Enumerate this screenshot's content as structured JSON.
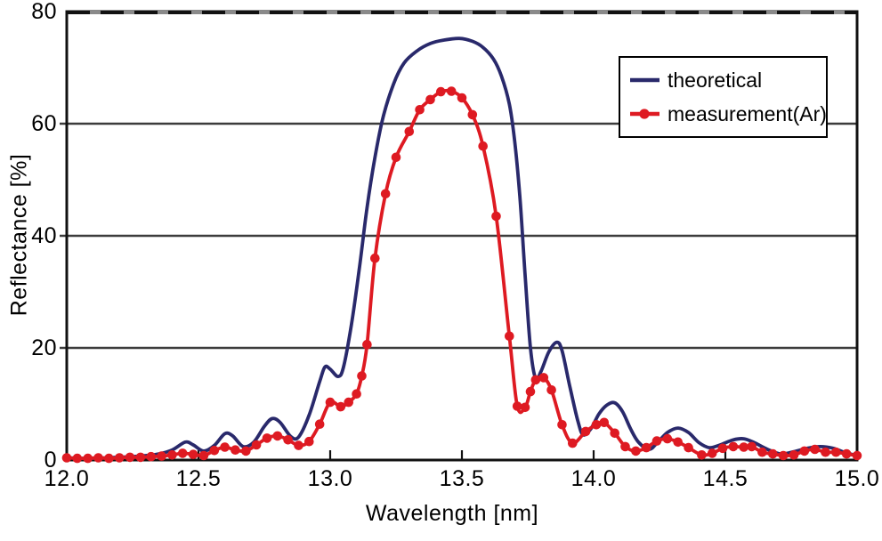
{
  "chart_data": {
    "type": "line",
    "xlabel": "Wavelength [nm]",
    "ylabel": "Reflectance [%]",
    "xlim": [
      12.0,
      15.0
    ],
    "ylim": [
      0,
      80
    ],
    "x_ticks": [
      "12.0",
      "12.5",
      "13.0",
      "13.5",
      "14.0",
      "14.5",
      "15.0"
    ],
    "y_ticks": [
      "80",
      "60",
      "40",
      "20",
      "0"
    ],
    "grid_y_values": [
      20,
      40,
      60
    ],
    "grid": "horizontal",
    "legend_position": "top-right",
    "colors": {
      "theoretical": "#29296b",
      "measurement": "#de1a22",
      "grid": "#3c3c3c",
      "axis": "#111111",
      "text": "#000000",
      "background": "#ffffff"
    },
    "series": [
      {
        "name": "theoretical",
        "color": "#29296b",
        "marker": "none",
        "points": [
          [
            12.0,
            0.4
          ],
          [
            12.05,
            0.3
          ],
          [
            12.1,
            0.3
          ],
          [
            12.15,
            0.4
          ],
          [
            12.2,
            0.5
          ],
          [
            12.25,
            0.6
          ],
          [
            12.3,
            0.8
          ],
          [
            12.35,
            1.1
          ],
          [
            12.4,
            1.8
          ],
          [
            12.45,
            3.2
          ],
          [
            12.48,
            2.7
          ],
          [
            12.52,
            1.6
          ],
          [
            12.56,
            2.6
          ],
          [
            12.6,
            4.7
          ],
          [
            12.63,
            4.3
          ],
          [
            12.67,
            2.4
          ],
          [
            12.71,
            3.2
          ],
          [
            12.75,
            6.0
          ],
          [
            12.78,
            7.4
          ],
          [
            12.81,
            6.7
          ],
          [
            12.85,
            4.2
          ],
          [
            12.88,
            4.1
          ],
          [
            12.92,
            8.0
          ],
          [
            12.96,
            14.0
          ],
          [
            12.98,
            16.6
          ],
          [
            13.0,
            16.2
          ],
          [
            13.03,
            14.9
          ],
          [
            13.05,
            16.5
          ],
          [
            13.08,
            24.0
          ],
          [
            13.11,
            34.0
          ],
          [
            13.14,
            45.0
          ],
          [
            13.17,
            54.0
          ],
          [
            13.2,
            61.0
          ],
          [
            13.24,
            67.0
          ],
          [
            13.28,
            70.8
          ],
          [
            13.33,
            73.0
          ],
          [
            13.38,
            74.3
          ],
          [
            13.43,
            74.9
          ],
          [
            13.49,
            75.2
          ],
          [
            13.54,
            74.7
          ],
          [
            13.58,
            73.6
          ],
          [
            13.62,
            71.5
          ],
          [
            13.65,
            68.5
          ],
          [
            13.68,
            63.5
          ],
          [
            13.7,
            57.0
          ],
          [
            13.72,
            47.0
          ],
          [
            13.74,
            33.0
          ],
          [
            13.76,
            20.0
          ],
          [
            13.78,
            14.5
          ],
          [
            13.8,
            15.8
          ],
          [
            13.83,
            19.3
          ],
          [
            13.86,
            21.0
          ],
          [
            13.88,
            19.5
          ],
          [
            13.91,
            13.0
          ],
          [
            13.94,
            7.0
          ],
          [
            13.96,
            4.5
          ],
          [
            13.99,
            5.6
          ],
          [
            14.02,
            8.2
          ],
          [
            14.05,
            9.8
          ],
          [
            14.08,
            10.2
          ],
          [
            14.11,
            8.6
          ],
          [
            14.14,
            5.6
          ],
          [
            14.17,
            3.2
          ],
          [
            14.21,
            1.9
          ],
          [
            14.24,
            3.0
          ],
          [
            14.28,
            4.9
          ],
          [
            14.32,
            5.7
          ],
          [
            14.36,
            4.9
          ],
          [
            14.4,
            3.1
          ],
          [
            14.44,
            2.2
          ],
          [
            14.48,
            2.7
          ],
          [
            14.53,
            3.6
          ],
          [
            14.57,
            3.8
          ],
          [
            14.61,
            3.1
          ],
          [
            14.66,
            1.9
          ],
          [
            14.71,
            1.1
          ],
          [
            14.76,
            1.5
          ],
          [
            14.81,
            2.1
          ],
          [
            14.86,
            2.4
          ],
          [
            14.91,
            2.1
          ],
          [
            14.95,
            1.4
          ],
          [
            15.0,
            0.8
          ]
        ]
      },
      {
        "name": "measurement(Ar)",
        "color": "#de1a22",
        "marker": "circle",
        "points": [
          [
            12.0,
            0.4
          ],
          [
            12.04,
            0.3
          ],
          [
            12.08,
            0.3
          ],
          [
            12.12,
            0.4
          ],
          [
            12.16,
            0.3
          ],
          [
            12.2,
            0.4
          ],
          [
            12.24,
            0.5
          ],
          [
            12.28,
            0.5
          ],
          [
            12.32,
            0.6
          ],
          [
            12.36,
            0.7
          ],
          [
            12.4,
            0.9
          ],
          [
            12.44,
            1.2
          ],
          [
            12.48,
            1.0
          ],
          [
            12.52,
            0.8
          ],
          [
            12.56,
            1.7
          ],
          [
            12.6,
            2.3
          ],
          [
            12.64,
            1.8
          ],
          [
            12.68,
            1.6
          ],
          [
            12.72,
            2.7
          ],
          [
            12.76,
            3.9
          ],
          [
            12.8,
            4.3
          ],
          [
            12.84,
            3.6
          ],
          [
            12.88,
            2.6
          ],
          [
            12.92,
            3.3
          ],
          [
            12.96,
            6.4
          ],
          [
            13.0,
            10.3
          ],
          [
            13.04,
            9.5
          ],
          [
            13.07,
            10.3
          ],
          [
            13.1,
            11.8
          ],
          [
            13.12,
            15.0
          ],
          [
            13.14,
            20.6
          ],
          [
            13.17,
            36.0
          ],
          [
            13.21,
            47.5
          ],
          [
            13.25,
            54.0
          ],
          [
            13.3,
            58.6
          ],
          [
            13.34,
            62.5
          ],
          [
            13.38,
            64.3
          ],
          [
            13.42,
            65.7
          ],
          [
            13.46,
            65.8
          ],
          [
            13.5,
            64.6
          ],
          [
            13.54,
            61.6
          ],
          [
            13.58,
            56.0
          ],
          [
            13.63,
            43.5
          ],
          [
            13.68,
            22.1
          ],
          [
            13.71,
            9.6
          ],
          [
            13.74,
            9.4
          ],
          [
            13.76,
            12.2
          ],
          [
            13.78,
            14.3
          ],
          [
            13.81,
            14.7
          ],
          [
            13.84,
            12.5
          ],
          [
            13.88,
            6.3
          ],
          [
            13.92,
            3.0
          ],
          [
            13.97,
            5.1
          ],
          [
            14.01,
            6.3
          ],
          [
            14.04,
            6.7
          ],
          [
            14.08,
            4.8
          ],
          [
            14.12,
            2.4
          ],
          [
            14.16,
            1.6
          ],
          [
            14.2,
            2.2
          ],
          [
            14.24,
            3.4
          ],
          [
            14.28,
            3.8
          ],
          [
            14.32,
            3.2
          ],
          [
            14.36,
            2.2
          ],
          [
            14.41,
            0.9
          ],
          [
            14.45,
            1.2
          ],
          [
            14.49,
            2.1
          ],
          [
            14.53,
            2.4
          ],
          [
            14.57,
            2.3
          ],
          [
            14.6,
            2.4
          ],
          [
            14.64,
            1.4
          ],
          [
            14.68,
            1.1
          ],
          [
            14.72,
            0.8
          ],
          [
            14.76,
            0.9
          ],
          [
            14.8,
            1.6
          ],
          [
            14.84,
            1.9
          ],
          [
            14.88,
            1.4
          ],
          [
            14.92,
            1.4
          ],
          [
            14.96,
            1.1
          ],
          [
            15.0,
            0.8
          ]
        ]
      }
    ]
  }
}
